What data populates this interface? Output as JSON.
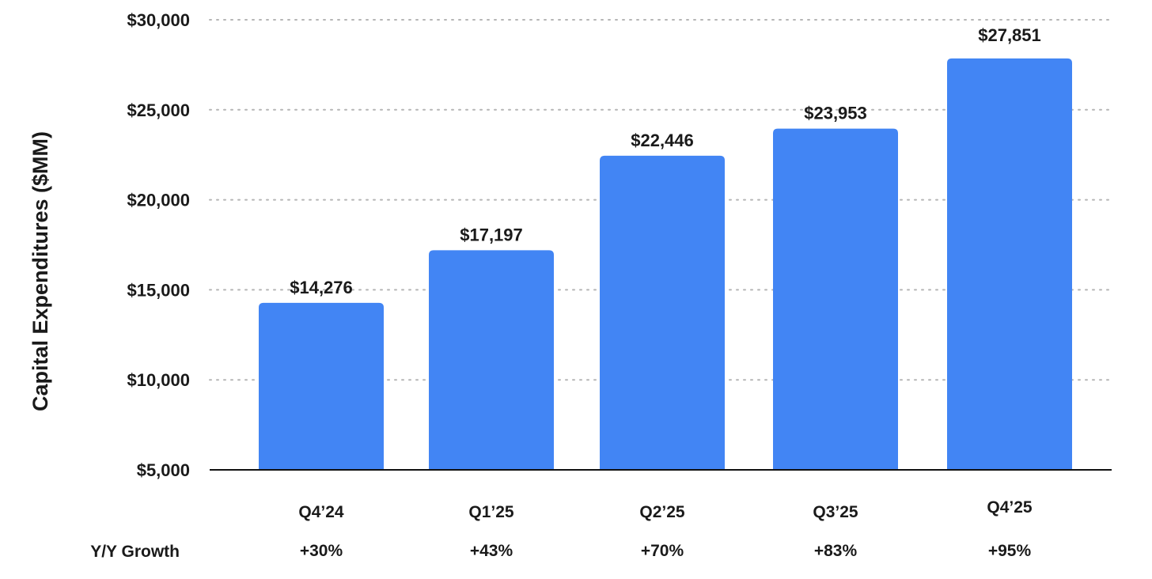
{
  "chart_data": {
    "type": "bar",
    "title": "",
    "ylabel": "Capital Expenditures ($MM)",
    "xlabel": "",
    "categories": [
      "Q4’24",
      "Q1’25",
      "Q2’25",
      "Q3’25",
      "Q4’25"
    ],
    "values": [
      14276,
      17197,
      22446,
      23953,
      27851
    ],
    "value_labels": [
      "$14,276",
      "$17,197",
      "$22,446",
      "$23,953",
      "$27,851"
    ],
    "ylim": [
      5000,
      30000
    ],
    "yticks": [
      5000,
      10000,
      15000,
      20000,
      25000,
      30000
    ],
    "ytick_labels": [
      "$5,000",
      "$10,000",
      "$15,000",
      "$20,000",
      "$25,000",
      "$30,000"
    ],
    "grid": "horizontal-dotted",
    "bar_color": "#4285F4",
    "growth_row_label": "Y/Y Growth",
    "growth": [
      "+30%",
      "+43%",
      "+70%",
      "+83%",
      "+95%"
    ]
  }
}
